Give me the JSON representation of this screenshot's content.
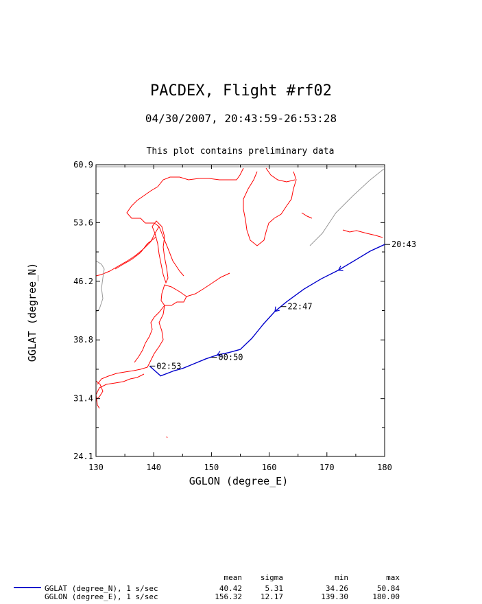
{
  "header": {
    "title": "PACDEX, Flight #rf02",
    "subtitle": "04/30/2007, 20:43:59-26:53:28",
    "note": "This plot contains preliminary data"
  },
  "chart_data": {
    "type": "line",
    "xlabel": "GGLON (degree_E)",
    "ylabel": "GGLAT (degree_N)",
    "xlim": [
      130,
      180
    ],
    "ylim": [
      24.1,
      60.9
    ],
    "x_ticks": [
      130,
      140,
      150,
      160,
      170,
      180
    ],
    "y_ticks": [
      24.1,
      31.4,
      38.8,
      46.2,
      53.6,
      60.9
    ],
    "series": [
      {
        "x": [
          180.0,
          177.5,
          175.0,
          172.0,
          169.0,
          166.0,
          163.0,
          161.0,
          159.0,
          157.0,
          155.0,
          153.0,
          151.0,
          149.0,
          147.0,
          145.0,
          143.5,
          141.2,
          139.3
        ],
        "y": [
          50.84,
          50.0,
          48.9,
          47.6,
          46.5,
          45.2,
          43.6,
          42.4,
          40.8,
          39.0,
          37.6,
          37.2,
          36.9,
          36.4,
          35.8,
          35.2,
          34.9,
          34.26,
          35.5
        ]
      }
    ],
    "time_labels": [
      {
        "text": "20:43",
        "x": 180.0,
        "y": 50.84
      },
      {
        "text": "22:47",
        "x": 162.0,
        "y": 43.0
      },
      {
        "text": "00:50",
        "x": 150.0,
        "y": 36.6
      },
      {
        "text": "02:53",
        "x": 139.3,
        "y": 35.5
      }
    ],
    "grid": false
  },
  "stats": {
    "headers": [
      "mean",
      "sigma",
      "min",
      "max"
    ],
    "rows": [
      {
        "label": "GGLAT (degree_N), 1 s/sec",
        "mean": "40.42",
        "sigma": "5.31",
        "min": "34.26",
        "max": "50.84"
      },
      {
        "label": "GGLON (degree_E), 1 s/sec",
        "mean": "156.32",
        "sigma": "12.17",
        "min": "139.30",
        "max": "180.00"
      }
    ]
  },
  "colors": {
    "track": "#0000cc",
    "coastline": "#ff0000",
    "border": "#999999"
  }
}
